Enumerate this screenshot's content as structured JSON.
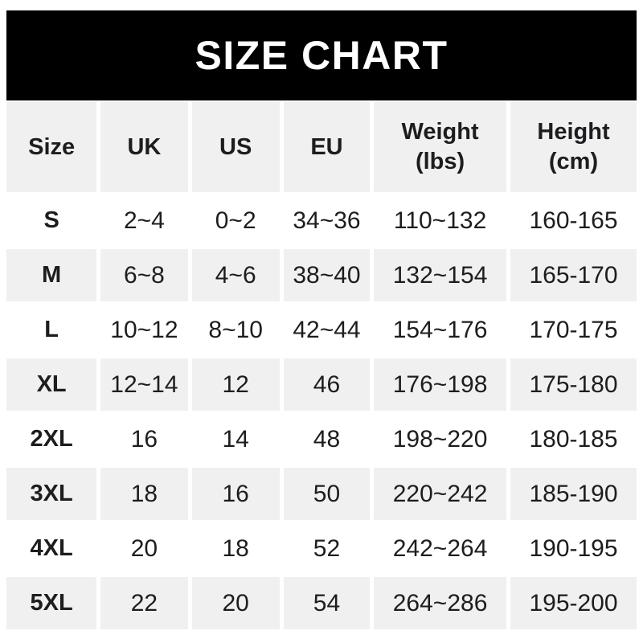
{
  "banner": {
    "title": "SIZE CHART"
  },
  "colors": {
    "banner_bg": "#000000",
    "banner_text": "#ffffff",
    "row_alt_bg": "#f0f0f1",
    "row_bg": "#ffffff",
    "text": "#1d1d1f",
    "page_bg": "#ffffff"
  },
  "chart_data": {
    "type": "table",
    "title": "SIZE CHART",
    "columns": [
      "Size",
      "UK",
      "US",
      "EU",
      "Weight\n(lbs)",
      "Height\n(cm)"
    ],
    "rows": [
      [
        "S",
        "2~4",
        "0~2",
        "34~36",
        "110~132",
        "160-165"
      ],
      [
        "M",
        "6~8",
        "4~6",
        "38~40",
        "132~154",
        "165-170"
      ],
      [
        "L",
        "10~12",
        "8~10",
        "42~44",
        "154~176",
        "170-175"
      ],
      [
        "XL",
        "12~14",
        "12",
        "46",
        "176~198",
        "175-180"
      ],
      [
        "2XL",
        "16",
        "14",
        "48",
        "198~220",
        "180-185"
      ],
      [
        "3XL",
        "18",
        "16",
        "50",
        "220~242",
        "185-190"
      ],
      [
        "4XL",
        "20",
        "18",
        "52",
        "242~264",
        "190-195"
      ],
      [
        "5XL",
        "22",
        "20",
        "54",
        "264~286",
        "195-200"
      ]
    ],
    "layout": {
      "alternating_gray_rows": [
        "header",
        "M",
        "XL",
        "3XL",
        "5XL"
      ],
      "grid_lines": "white gutters between cells",
      "legend": "none"
    }
  }
}
